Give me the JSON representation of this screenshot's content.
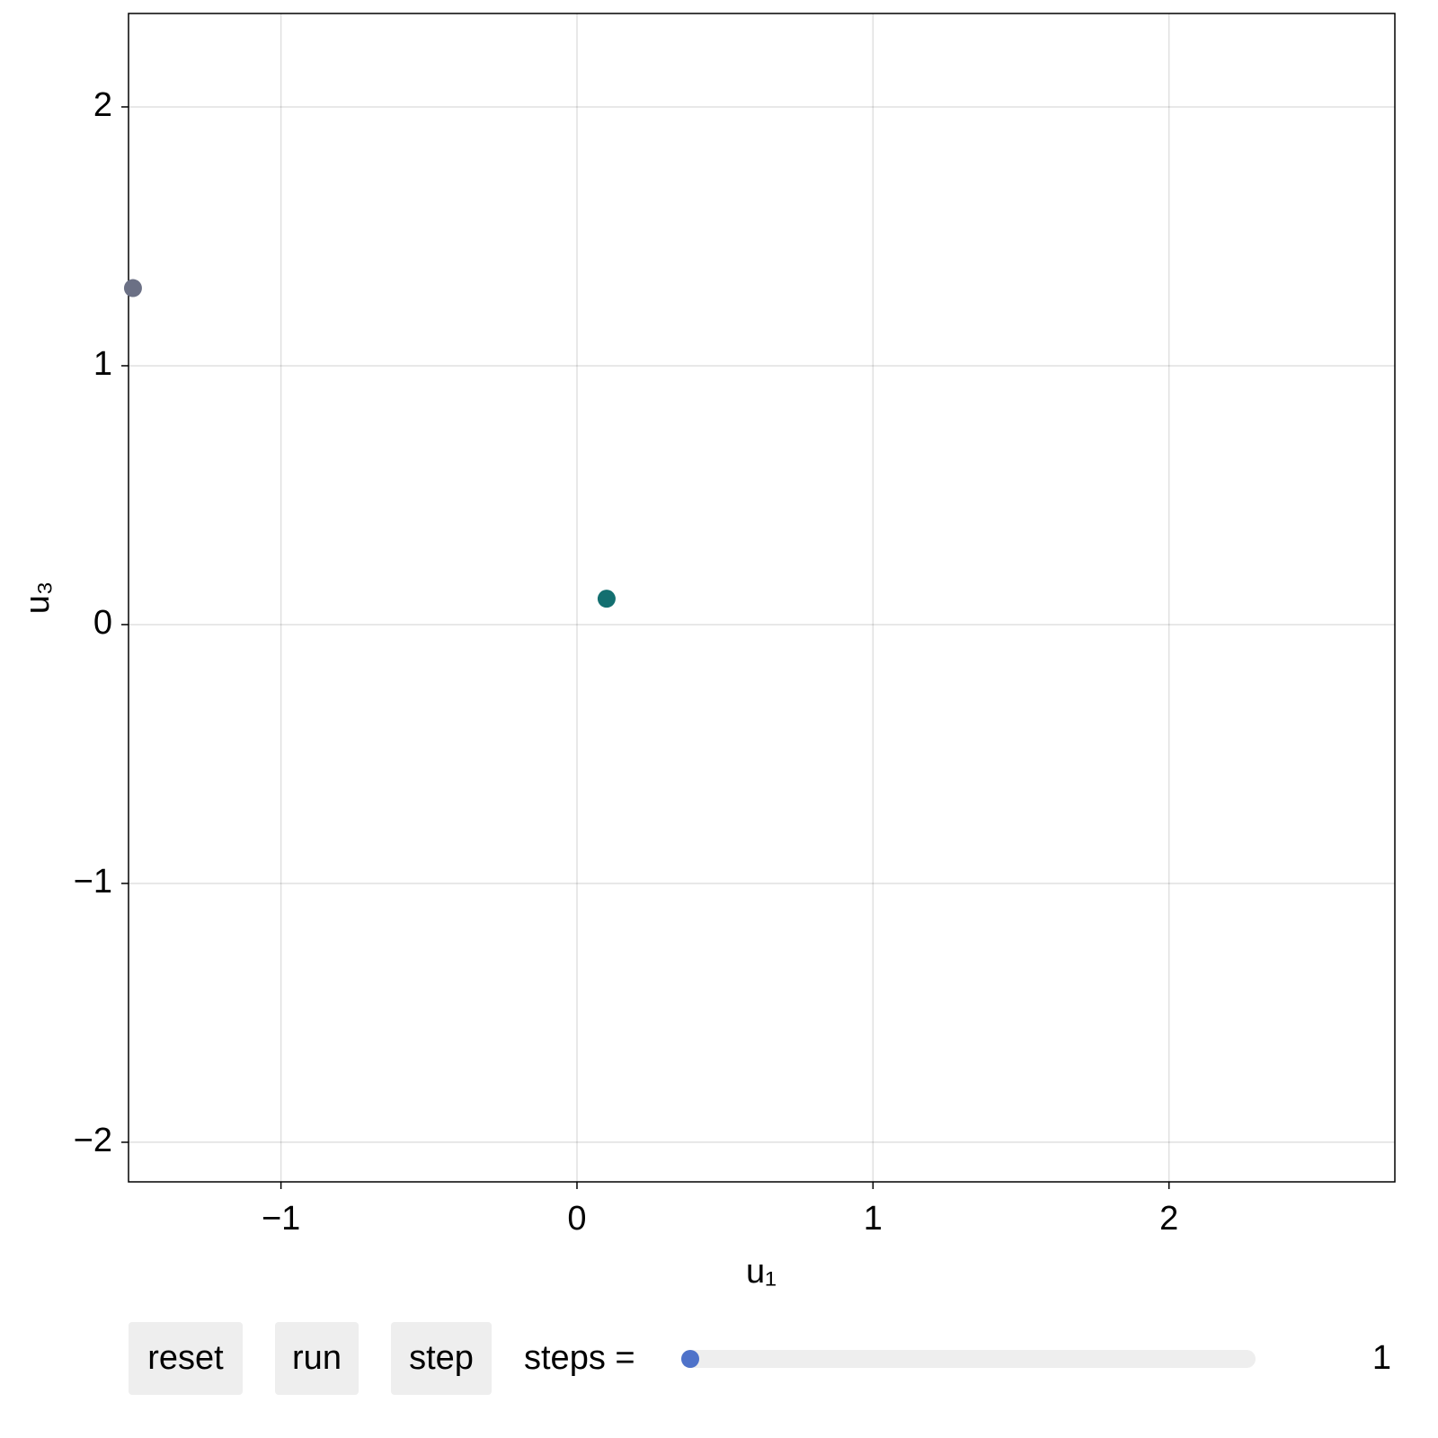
{
  "chart_data": {
    "type": "scatter",
    "x": [
      0.1,
      -1.5
    ],
    "values": [
      0.1,
      1.3
    ],
    "colors": [
      "#136f70",
      "#6b7085"
    ],
    "xlabel": "u₁",
    "ylabel": "u₃",
    "xlim": [
      -1.515,
      2.763
    ],
    "ylim": [
      -2.153,
      2.361
    ],
    "xticks": [
      {
        "value": -1,
        "label": "−1"
      },
      0,
      1,
      2
    ],
    "yticks": [
      {
        "value": -2,
        "label": "−2"
      },
      {
        "value": -1,
        "label": "−1"
      },
      0,
      1,
      2
    ],
    "grid": true
  },
  "controls": {
    "buttons": [
      "reset",
      "run",
      "step"
    ],
    "slider": {
      "label": "steps =",
      "value": 1
    }
  }
}
